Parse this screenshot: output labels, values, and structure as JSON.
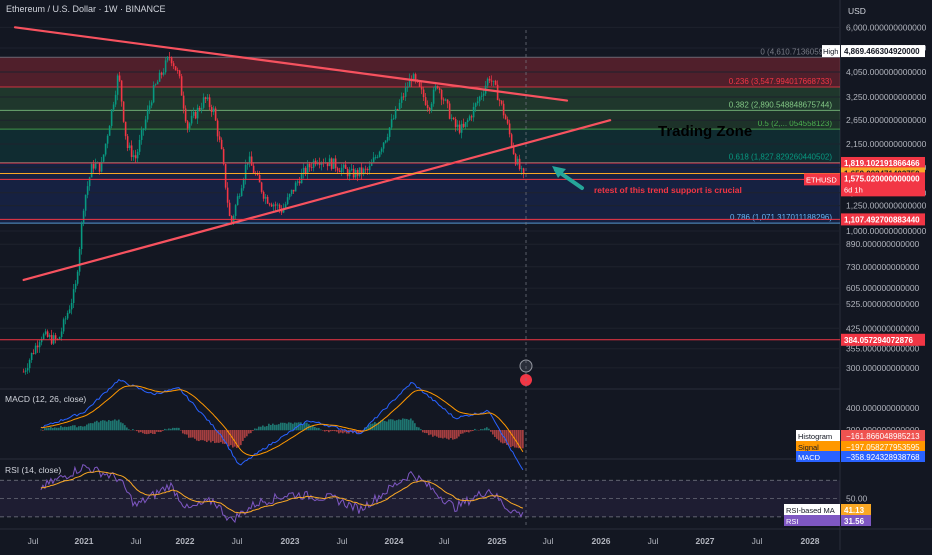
{
  "header": {
    "title": "Ethereum / U.S. Dollar · 1W · BINANCE"
  },
  "chart_data": [
    {
      "type": "candlestick",
      "panel": "price",
      "symbol": "ETHUSD",
      "interval": "1W",
      "exchange": "BINANCE",
      "y_scale": "log",
      "currency": "USD",
      "ylim": [
        280,
        6000
      ],
      "y_ticks": [
        "6,000.000000000000",
        "5,000.000000000000",
        "4,050.000000000000",
        "3,250.000000000000",
        "2,650.000000000000",
        "2,150.000000000000",
        "1,750.000000000000",
        "1,400.000000000000",
        "1,250.000000000000",
        "1,000.000000000000",
        "890.000000000000",
        "730.000000000000",
        "605.000000000000",
        "525.000000000000",
        "425.000000000000",
        "355.000000000000",
        "300.000000000000"
      ],
      "x_ticks": [
        "Jul",
        "2021",
        "Jul",
        "2022",
        "Jul",
        "2023",
        "Jul",
        "2024",
        "Jul",
        "2025",
        "Jul",
        "2026",
        "Jul",
        "2027",
        "Jul",
        "2028"
      ],
      "price_path": [
        [
          "2020-06",
          290
        ],
        [
          "2020-08",
          400
        ],
        [
          "2020-10",
          380
        ],
        [
          "2020-12",
          600
        ],
        [
          "2021-01",
          1300
        ],
        [
          "2021-02",
          1800
        ],
        [
          "2021-03",
          1750
        ],
        [
          "2021-05",
          4000
        ],
        [
          "2021-06",
          2100
        ],
        [
          "2021-07",
          1900
        ],
        [
          "2021-09",
          3400
        ],
        [
          "2021-11",
          4700
        ],
        [
          "2021-12",
          3900
        ],
        [
          "2022-01",
          2500
        ],
        [
          "2022-03",
          3200
        ],
        [
          "2022-04",
          2900
        ],
        [
          "2022-05",
          1950
        ],
        [
          "2022-06",
          1050
        ],
        [
          "2022-08",
          1900
        ],
        [
          "2022-10",
          1350
        ],
        [
          "2022-12",
          1200
        ],
        [
          "2023-02",
          1600
        ],
        [
          "2023-04",
          1900
        ],
        [
          "2023-06",
          1800
        ],
        [
          "2023-08",
          1650
        ],
        [
          "2023-10",
          1700
        ],
        [
          "2023-12",
          2300
        ],
        [
          "2024-03",
          3900
        ],
        [
          "2024-05",
          3000
        ],
        [
          "2024-06",
          3650
        ],
        [
          "2024-08",
          2500
        ],
        [
          "2024-09",
          2450
        ],
        [
          "2024-11",
          3300
        ],
        [
          "2024-12",
          3900
        ],
        [
          "2025-01",
          3300
        ],
        [
          "2025-02",
          2600
        ],
        [
          "2025-03",
          1900
        ],
        [
          "2025-04",
          1575
        ]
      ],
      "horizontal_levels": [
        {
          "label": "High",
          "price": 4869.46630492,
          "text": "4,869.466304920000",
          "color": "#ffffff"
        },
        {
          "price": 1819.102191866466,
          "text": "1,819.102191866466",
          "color": "#f23645"
        },
        {
          "price": 1659.09247140375,
          "text": "1,659.092471403750",
          "color": "#f9a825"
        },
        {
          "label": "ETHUSD",
          "price": 1575.02,
          "text": "1,575.020000000000",
          "countdown": "6d 1h",
          "color": "#f23645"
        },
        {
          "price": 1107.49270088344,
          "text": "1,107.492700883440",
          "color": "#f23645"
        },
        {
          "price": 384.057294072876,
          "text": "384.057294072876",
          "color": "#f23645"
        }
      ],
      "fib_levels": [
        {
          "ratio": "0",
          "price": 4610.713605903,
          "text": "0 (4,610.713605903",
          "color": "#787b86"
        },
        {
          "ratio": "0.236",
          "price": 3547.994017668733,
          "text": "0.236 (3,547.994017668733)",
          "color": "#f23645"
        },
        {
          "ratio": "0.382",
          "price": 2890.548848675744,
          "text": "0.382 (2,890.548848675744)",
          "color": "#81c784"
        },
        {
          "ratio": "0.5",
          "price": 2450.0,
          "text": "0.5 (2,... 054558123)",
          "color": "#4caf50"
        },
        {
          "ratio": "0.618",
          "price": 1827.829260440502,
          "text": "0.618 (1,827.829260440502)",
          "color": "#089981"
        },
        {
          "ratio": "0.786",
          "price": 1071.317011188296,
          "text": "0.786 (1,071.317011188296)",
          "color": "#64b5f6"
        }
      ],
      "trendlines": [
        {
          "name": "upper resistance",
          "from": [
            "2020-05",
            6000
          ],
          "to": [
            "2025-09",
            3150
          ],
          "color": "#f7525f"
        },
        {
          "name": "lower support",
          "from": [
            "2020-06",
            650
          ],
          "to": [
            "2026-02",
            2650
          ],
          "color": "#f7525f"
        }
      ],
      "annotations": [
        {
          "text": "Trading Zone",
          "color": "#000000"
        },
        {
          "text": "retest of this trend support is crucial",
          "color": "#f23645"
        }
      ]
    },
    {
      "type": "line",
      "panel": "macd",
      "title": "MACD (12, 26, close)",
      "y_ticks": [
        "400.000000000000",
        "200.000000000000"
      ],
      "series": [
        {
          "name": "Histogram",
          "last": "−161.866048985213",
          "color": "#ef5350"
        },
        {
          "name": "Signal",
          "last": "−197.058277953595",
          "color": "#ff9800"
        },
        {
          "name": "MACD",
          "last": "−358.924328938768",
          "color": "#2962ff"
        }
      ],
      "shape": [
        [
          "2020-08",
          20
        ],
        [
          "2021-01",
          150
        ],
        [
          "2021-05",
          420
        ],
        [
          "2021-09",
          300
        ],
        [
          "2021-12",
          350
        ],
        [
          "2022-05",
          -50
        ],
        [
          "2022-07",
          -300
        ],
        [
          "2022-10",
          -150
        ],
        [
          "2023-03",
          80
        ],
        [
          "2023-09",
          -30
        ],
        [
          "2024-03",
          400
        ],
        [
          "2024-08",
          100
        ],
        [
          "2024-12",
          160
        ],
        [
          "2025-04",
          -359
        ]
      ]
    },
    {
      "type": "line",
      "panel": "rsi",
      "title": "RSI (14, close)",
      "y_ticks": [
        "50.00"
      ],
      "levels": [
        70,
        50,
        30
      ],
      "series": [
        {
          "name": "RSI-based MA",
          "last": "41.13",
          "color": "#f9a825"
        },
        {
          "name": "RSI",
          "last": "31.56",
          "color": "#7e57c2"
        }
      ],
      "shape": [
        [
          "2020-08",
          62
        ],
        [
          "2021-01",
          85
        ],
        [
          "2021-05",
          72
        ],
        [
          "2021-07",
          42
        ],
        [
          "2021-11",
          65
        ],
        [
          "2022-01",
          38
        ],
        [
          "2022-04",
          48
        ],
        [
          "2022-06",
          26
        ],
        [
          "2022-09",
          45
        ],
        [
          "2023-01",
          55
        ],
        [
          "2023-06",
          50
        ],
        [
          "2023-09",
          38
        ],
        [
          "2024-03",
          78
        ],
        [
          "2024-08",
          40
        ],
        [
          "2024-12",
          60
        ],
        [
          "2025-02",
          40
        ],
        [
          "2025-04",
          31.56
        ]
      ]
    }
  ],
  "axis": {
    "currency_label": "USD"
  }
}
